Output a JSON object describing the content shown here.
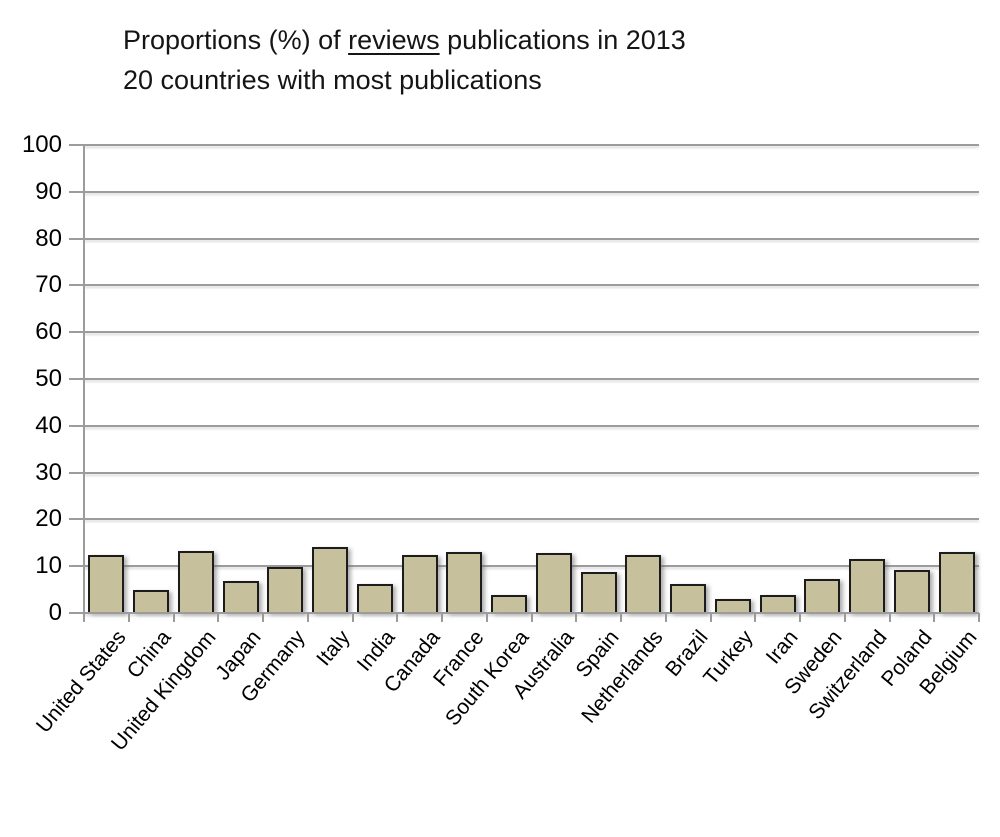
{
  "title": {
    "line1_pre": "Proportions (%) of ",
    "line1_underlined": "reviews",
    "line1_post": " publications in 2013",
    "line2": "20 countries with most publications"
  },
  "chart_data": {
    "type": "bar",
    "title": "Proportions (%) of reviews publications in 2013",
    "subtitle": "20 countries with most publications",
    "categories": [
      "United States",
      "China",
      "United Kingdom",
      "Japan",
      "Germany",
      "Italy",
      "India",
      "Canada",
      "France",
      "South Korea",
      "Australia",
      "Spain",
      "Netherlands",
      "Brazil",
      "Turkey",
      "Iran",
      "Sweden",
      "Switzerland",
      "Poland",
      "Belgium"
    ],
    "values": [
      12.3,
      5.0,
      13.2,
      6.9,
      9.8,
      14.0,
      6.1,
      12.4,
      13.0,
      3.8,
      12.9,
      8.8,
      12.3,
      6.1,
      3.0,
      3.9,
      7.2,
      11.5,
      9.2,
      13.0
    ],
    "xlabel": "",
    "ylabel": "",
    "ylim": [
      0,
      100
    ],
    "ytick_step": 10,
    "yticks": [
      0,
      10,
      20,
      30,
      40,
      50,
      60,
      70,
      80,
      90,
      100
    ],
    "grid": true,
    "legend": "none",
    "colors": {
      "bar_fill": "#C7C09D",
      "bar_border": "#1c1c1c",
      "gridline": "#9c9c9c",
      "text": "#000000"
    }
  }
}
